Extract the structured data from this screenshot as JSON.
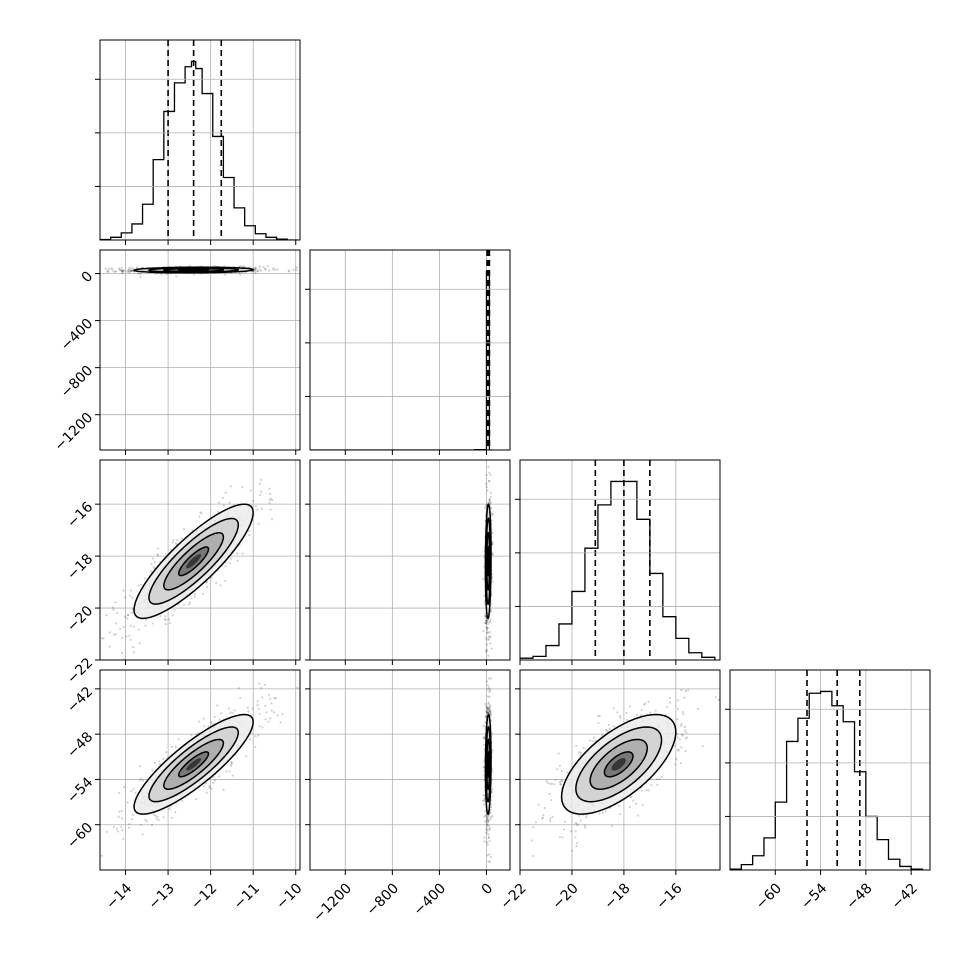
{
  "chart_data": {
    "type": "corner",
    "parameters": [
      "",
      "",
      "",
      ""
    ],
    "quantiles": [
      0.16,
      0.5,
      0.84
    ],
    "axes": [
      {
        "range": [
          -14.6,
          -9.9
        ],
        "ticks": [
          -14,
          -13,
          -12,
          -11,
          -10
        ],
        "tick_labels": [
          "−14",
          "−13",
          "−12",
          "−11",
          "−10"
        ]
      },
      {
        "range": [
          -1500,
          200
        ],
        "ticks": [
          -1200,
          -800,
          -400,
          0
        ],
        "tick_labels": [
          "−1200",
          "−800",
          "−400",
          "0"
        ]
      },
      {
        "range": [
          -22,
          -14.3
        ],
        "ticks": [
          -22,
          -20,
          -18,
          -16
        ],
        "tick_labels": [
          "−22",
          "−20",
          "−18",
          "−16"
        ]
      },
      {
        "range": [
          -66,
          -39.5
        ],
        "ticks": [
          -60,
          -54,
          -48,
          -42
        ],
        "tick_labels": [
          "−60",
          "−54",
          "−48",
          "−42"
        ]
      }
    ],
    "marginals": [
      {
        "edges": [
          -14.6,
          -14.35,
          -14.1,
          -13.85,
          -13.6,
          -13.35,
          -13.1,
          -12.85,
          -12.6,
          -12.45,
          -12.35,
          -12.2,
          -11.95,
          -11.7,
          -11.45,
          -11.2,
          -10.95,
          -10.7,
          -10.45,
          -10.2,
          -9.95
        ],
        "heights": [
          0.3,
          1.5,
          4,
          9,
          20,
          45,
          72,
          88,
          97,
          100,
          96,
          82,
          58,
          35,
          18,
          8,
          3.5,
          1.5,
          0.5,
          0
        ],
        "quantile_values": [
          -13.0,
          -12.4,
          -11.75
        ]
      },
      {
        "edges": [
          -1500,
          -1300,
          -1100,
          -900,
          -700,
          -500,
          -300,
          -100,
          0,
          25,
          50
        ],
        "heights": [
          0,
          0,
          0,
          0,
          0,
          0,
          0,
          0.2,
          100,
          0
        ],
        "quantile_values": [
          5,
          15,
          25
        ]
      },
      {
        "edges": [
          -22,
          -21.5,
          -21,
          -20.5,
          -20,
          -19.5,
          -19,
          -18.5,
          -18,
          -17.5,
          -17,
          -16.5,
          -16,
          -15.5,
          -15,
          -14.5
        ],
        "heights": [
          1,
          2,
          8,
          20,
          38,
          62,
          86,
          99,
          99,
          78,
          48,
          24,
          12,
          4,
          1.5
        ],
        "quantile_values": [
          -19.1,
          -18.0,
          -17.0
        ]
      },
      {
        "edges": [
          -66,
          -64.5,
          -63,
          -61.5,
          -60,
          -58.5,
          -57,
          -55.5,
          -54,
          -52.5,
          -51,
          -49.5,
          -48,
          -46.5,
          -45,
          -43.5,
          -42,
          -40.5
        ],
        "heights": [
          0.5,
          3,
          8,
          18,
          38,
          72,
          85,
          99,
          100,
          92,
          83,
          55,
          30,
          17,
          6,
          2,
          0.5
        ],
        "quantile_values": [
          -55.8,
          -51.8,
          -48.8
        ]
      }
    ],
    "joint": [
      {
        "row": 1,
        "col": 0,
        "center": [
          -12.4,
          30
        ],
        "sigma": [
          0.7,
          12
        ],
        "rho": 0.1
      },
      {
        "row": 2,
        "col": 0,
        "center": [
          -12.4,
          -18.2
        ],
        "sigma": [
          0.7,
          1.1
        ],
        "rho": 0.85
      },
      {
        "row": 2,
        "col": 1,
        "center": [
          15,
          -18.2
        ],
        "sigma": [
          12,
          1.1
        ],
        "rho": 0.1
      },
      {
        "row": 3,
        "col": 0,
        "center": [
          -12.4,
          -52
        ],
        "sigma": [
          0.7,
          3.3
        ],
        "rho": 0.85
      },
      {
        "row": 3,
        "col": 1,
        "center": [
          15,
          -52
        ],
        "sigma": [
          12,
          3.3
        ],
        "rho": 0.1
      },
      {
        "row": 3,
        "col": 2,
        "center": [
          -18.2,
          -52
        ],
        "sigma": [
          1.1,
          3.3
        ],
        "rho": 0.65
      }
    ],
    "contour_levels_sigma": [
      0.5,
      1.0,
      1.5,
      2.0
    ],
    "grid": true
  }
}
